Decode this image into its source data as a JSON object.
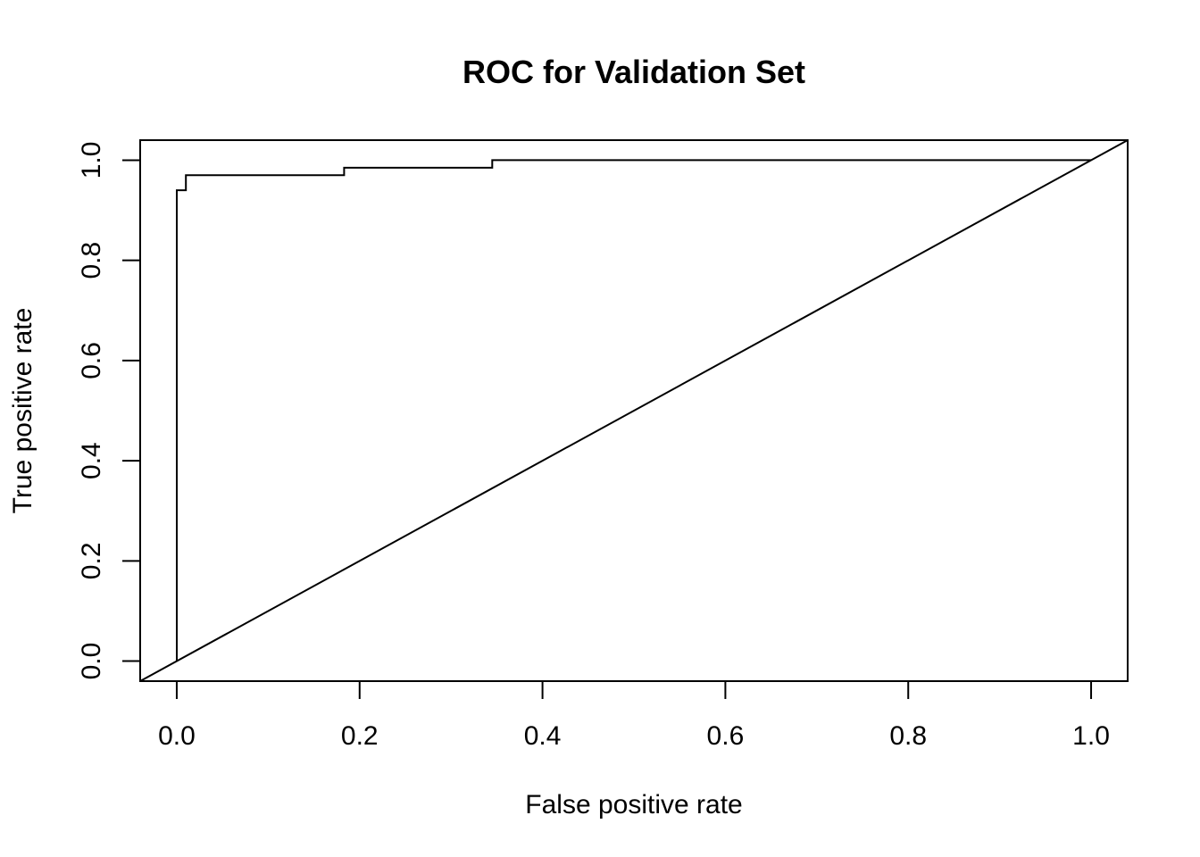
{
  "chart_data": {
    "type": "line",
    "title": "ROC for Validation Set",
    "xlabel": "False positive rate",
    "ylabel": "True positive rate",
    "xlim": [
      -0.04,
      1.04
    ],
    "ylim": [
      -0.04,
      1.04
    ],
    "x_ticks": [
      "0.0",
      "0.2",
      "0.4",
      "0.6",
      "0.8",
      "1.0"
    ],
    "y_ticks": [
      "0.0",
      "0.2",
      "0.4",
      "0.6",
      "0.8",
      "1.0"
    ],
    "grid": false,
    "series": [
      {
        "values": [
          {
            "x": 0.0,
            "y": 0.0
          },
          {
            "x": 0.0,
            "y": 0.94
          },
          {
            "x": 0.01,
            "y": 0.94
          },
          {
            "x": 0.01,
            "y": 0.97
          },
          {
            "x": 0.183,
            "y": 0.97
          },
          {
            "x": 0.183,
            "y": 0.985
          },
          {
            "x": 0.345,
            "y": 0.985
          },
          {
            "x": 0.345,
            "y": 1.0
          },
          {
            "x": 1.0,
            "y": 1.0
          }
        ]
      },
      {
        "style": "reference",
        "values": [
          {
            "x": -0.04,
            "y": -0.04
          },
          {
            "x": 1.04,
            "y": 1.04
          }
        ]
      }
    ]
  }
}
